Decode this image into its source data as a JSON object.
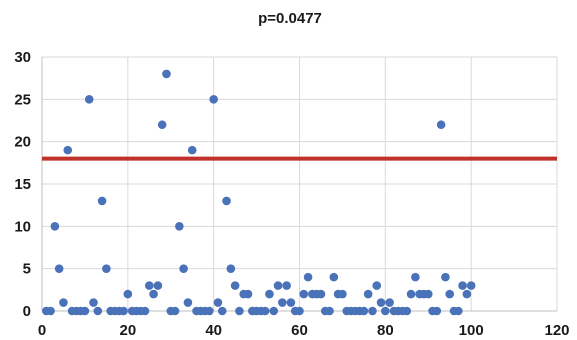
{
  "chart_data": {
    "type": "scatter",
    "title": "p=0.0477",
    "xlabel": "",
    "ylabel": "",
    "xlim": [
      0,
      120
    ],
    "ylim": [
      0,
      30
    ],
    "x_ticks": [
      0,
      20,
      40,
      60,
      80,
      100,
      120
    ],
    "y_ticks": [
      0,
      5,
      10,
      15,
      20,
      25,
      30
    ],
    "grid": true,
    "legend": "none",
    "point_color": "#4a72b8",
    "reference_line": {
      "y": 18,
      "color": "#c0312b"
    },
    "series": [
      {
        "points": [
          [
            1,
            0
          ],
          [
            2,
            0
          ],
          [
            3,
            10
          ],
          [
            4,
            5
          ],
          [
            5,
            1
          ],
          [
            6,
            19
          ],
          [
            7,
            0
          ],
          [
            8,
            0
          ],
          [
            9,
            0
          ],
          [
            10,
            0
          ],
          [
            11,
            25
          ],
          [
            12,
            1
          ],
          [
            13,
            0
          ],
          [
            14,
            13
          ],
          [
            15,
            5
          ],
          [
            16,
            0
          ],
          [
            17,
            0
          ],
          [
            18,
            0
          ],
          [
            19,
            0
          ],
          [
            20,
            2
          ],
          [
            21,
            0
          ],
          [
            22,
            0
          ],
          [
            23,
            0
          ],
          [
            24,
            0
          ],
          [
            25,
            3
          ],
          [
            26,
            2
          ],
          [
            27,
            3
          ],
          [
            28,
            22
          ],
          [
            29,
            28
          ],
          [
            30,
            0
          ],
          [
            31,
            0
          ],
          [
            32,
            10
          ],
          [
            33,
            5
          ],
          [
            34,
            1
          ],
          [
            35,
            19
          ],
          [
            36,
            0
          ],
          [
            37,
            0
          ],
          [
            38,
            0
          ],
          [
            39,
            0
          ],
          [
            40,
            25
          ],
          [
            41,
            1
          ],
          [
            42,
            0
          ],
          [
            43,
            13
          ],
          [
            44,
            5
          ],
          [
            45,
            3
          ],
          [
            46,
            0
          ],
          [
            47,
            2
          ],
          [
            48,
            2
          ],
          [
            49,
            0
          ],
          [
            50,
            0
          ],
          [
            51,
            0
          ],
          [
            52,
            0
          ],
          [
            53,
            2
          ],
          [
            54,
            0
          ],
          [
            55,
            3
          ],
          [
            56,
            1
          ],
          [
            57,
            3
          ],
          [
            58,
            1
          ],
          [
            59,
            0
          ],
          [
            60,
            0
          ],
          [
            61,
            2
          ],
          [
            62,
            4
          ],
          [
            63,
            2
          ],
          [
            64,
            2
          ],
          [
            65,
            2
          ],
          [
            66,
            0
          ],
          [
            67,
            0
          ],
          [
            68,
            4
          ],
          [
            69,
            2
          ],
          [
            70,
            2
          ],
          [
            71,
            0
          ],
          [
            72,
            0
          ],
          [
            73,
            0
          ],
          [
            74,
            0
          ],
          [
            75,
            0
          ],
          [
            76,
            2
          ],
          [
            77,
            0
          ],
          [
            78,
            3
          ],
          [
            79,
            1
          ],
          [
            80,
            0
          ],
          [
            81,
            1
          ],
          [
            82,
            0
          ],
          [
            83,
            0
          ],
          [
            84,
            0
          ],
          [
            85,
            0
          ],
          [
            86,
            2
          ],
          [
            87,
            4
          ],
          [
            88,
            2
          ],
          [
            89,
            2
          ],
          [
            90,
            2
          ],
          [
            91,
            0
          ],
          [
            92,
            0
          ],
          [
            93,
            22
          ],
          [
            94,
            4
          ],
          [
            95,
            2
          ],
          [
            96,
            0
          ],
          [
            97,
            0
          ],
          [
            98,
            3
          ],
          [
            99,
            2
          ],
          [
            100,
            3
          ]
        ]
      }
    ]
  }
}
